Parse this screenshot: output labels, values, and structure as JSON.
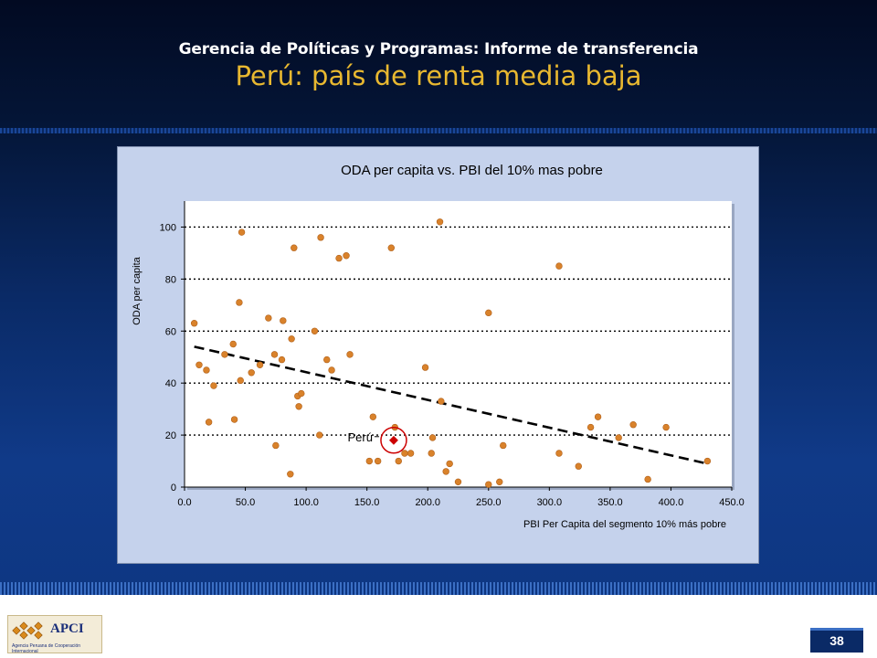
{
  "slide": {
    "title_line1": "Gerencia de Políticas y Programas: Informe de transferencia",
    "title_line2": "Perú: país de renta media baja",
    "page_number": "38"
  },
  "logo": {
    "text": "APCI",
    "subtitle": "Agencia Peruana de Cooperación Internacional"
  },
  "colors": {
    "point": "#d9822b",
    "highlight": "#cc0000",
    "trend": "#000000",
    "plot_bg": "#ffffff",
    "frame_bg": "#c5d2ec",
    "title_gold": "#e8b830"
  },
  "chart_data": {
    "type": "scatter",
    "title": "ODA per capita vs. PBI del 10% mas pobre",
    "xlabel": "PBI Per Capita del segmento 10% más pobre",
    "ylabel": "ODA per capita",
    "xlim": [
      0,
      450
    ],
    "ylim": [
      0,
      110
    ],
    "x_ticks": [
      "0.0",
      "50.0",
      "100.0",
      "150.0",
      "200.0",
      "250.0",
      "300.0",
      "350.0",
      "400.0",
      "450.0"
    ],
    "y_ticks": [
      "0",
      "20",
      "40",
      "60",
      "80",
      "100"
    ],
    "grid": "horizontal dotted",
    "series": [
      {
        "points": [
          [
            8,
            63
          ],
          [
            12,
            47
          ],
          [
            18,
            45
          ],
          [
            20,
            25
          ],
          [
            24,
            39
          ],
          [
            33,
            51
          ],
          [
            40,
            55
          ],
          [
            41,
            26
          ],
          [
            45,
            71
          ],
          [
            46,
            41
          ],
          [
            47,
            98
          ],
          [
            55,
            44
          ],
          [
            62,
            47
          ],
          [
            69,
            65
          ],
          [
            74,
            51
          ],
          [
            75,
            16
          ],
          [
            80,
            49
          ],
          [
            81,
            64
          ],
          [
            87,
            5
          ],
          [
            88,
            57
          ],
          [
            90,
            92
          ],
          [
            93,
            35
          ],
          [
            94,
            31
          ],
          [
            96,
            36
          ],
          [
            107,
            60
          ],
          [
            111,
            20
          ],
          [
            112,
            96
          ],
          [
            117,
            49
          ],
          [
            121,
            45
          ],
          [
            127,
            88
          ],
          [
            133,
            89
          ],
          [
            136,
            51
          ],
          [
            152,
            10
          ],
          [
            155,
            27
          ],
          [
            159,
            10
          ],
          [
            170,
            92
          ],
          [
            173,
            23
          ],
          [
            176,
            10
          ],
          [
            181,
            13
          ],
          [
            186,
            13
          ],
          [
            198,
            46
          ],
          [
            203,
            13
          ],
          [
            204,
            19
          ],
          [
            210,
            102
          ],
          [
            211,
            33
          ],
          [
            215,
            6
          ],
          [
            218,
            9
          ],
          [
            225,
            2
          ],
          [
            250,
            67
          ],
          [
            250,
            1
          ],
          [
            259,
            2
          ],
          [
            262,
            16
          ],
          [
            308,
            85
          ],
          [
            308,
            13
          ],
          [
            324,
            8
          ],
          [
            334,
            23
          ],
          [
            340,
            27
          ],
          [
            357,
            19
          ],
          [
            369,
            24
          ],
          [
            381,
            3
          ],
          [
            396,
            23
          ],
          [
            430,
            10
          ]
        ]
      }
    ],
    "highlight": {
      "label": "Perú",
      "x": 172,
      "y": 18
    },
    "trendline": {
      "style": "dashed",
      "x": [
        8,
        430
      ],
      "y": [
        54,
        9
      ]
    }
  }
}
